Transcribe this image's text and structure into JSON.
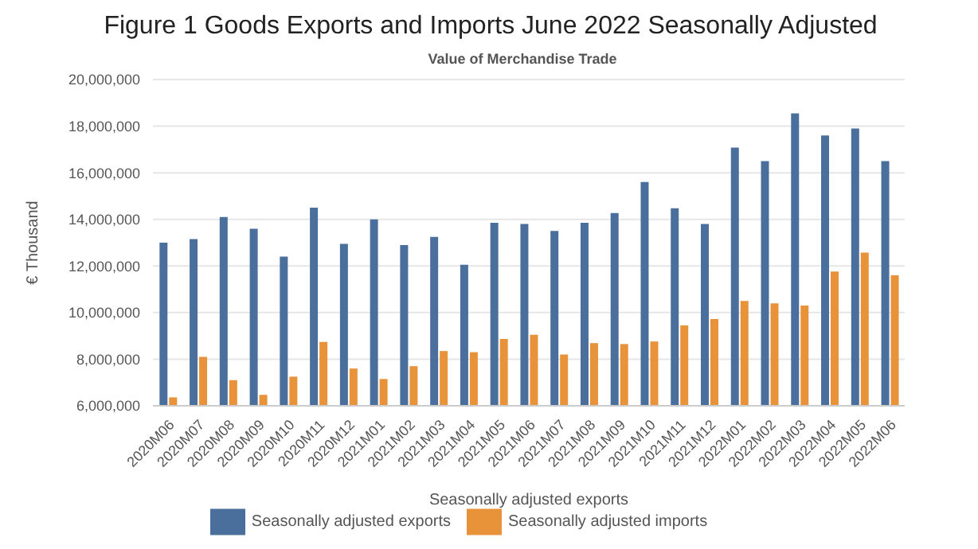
{
  "chart_data": {
    "type": "bar",
    "title": "Figure 1 Goods Exports and Imports June 2022 Seasonally Adjusted",
    "subtitle": "Value of Merchandise Trade",
    "xlabel": "Seasonally adjusted exports",
    "ylabel": "€ Thousand",
    "categories": [
      "2020M06",
      "2020M07",
      "2020M08",
      "2020M09",
      "2020M10",
      "2020M11",
      "2020M12",
      "2021M01",
      "2021M02",
      "2021M03",
      "2021M04",
      "2021M05",
      "2021M06",
      "2021M07",
      "2021M08",
      "2021M09",
      "2021M10",
      "2021M11",
      "2021M12",
      "2022M01",
      "2022M02",
      "2022M03",
      "2022M04",
      "2022M05",
      "2022M06"
    ],
    "series": [
      {
        "name": "Seasonally adjusted exports",
        "color": "#4a6f9c",
        "values": [
          13000000,
          13150000,
          14100000,
          13600000,
          12400000,
          14500000,
          12950000,
          14000000,
          12900000,
          13250000,
          12050000,
          13850000,
          13800000,
          13500000,
          13850000,
          14270000,
          15600000,
          14480000,
          13800000,
          17080000,
          16500000,
          18550000,
          17600000,
          17900000,
          16500000
        ]
      },
      {
        "name": "Seasonally adjusted imports",
        "color": "#e8923a",
        "values": [
          6360000,
          8100000,
          7100000,
          6470000,
          7250000,
          8740000,
          7600000,
          7150000,
          7700000,
          8350000,
          8300000,
          8870000,
          9050000,
          8200000,
          8690000,
          8650000,
          8760000,
          9450000,
          9720000,
          10500000,
          10400000,
          10300000,
          11760000,
          12570000,
          11600000
        ]
      }
    ],
    "ylim": [
      6000000,
      20000000
    ],
    "yticks": [
      {
        "value": 6000000,
        "label": "6,000,000"
      },
      {
        "value": 8000000,
        "label": "8,000,000"
      },
      {
        "value": 10000000,
        "label": "10,000,000"
      },
      {
        "value": 12000000,
        "label": "12,000,000"
      },
      {
        "value": 14000000,
        "label": "14,000,000"
      },
      {
        "value": 16000000,
        "label": "16,000,000"
      },
      {
        "value": 18000000,
        "label": "18,000,000"
      },
      {
        "value": 20000000,
        "label": "20,000,000"
      }
    ],
    "grid": "y",
    "legend": "bottom"
  }
}
